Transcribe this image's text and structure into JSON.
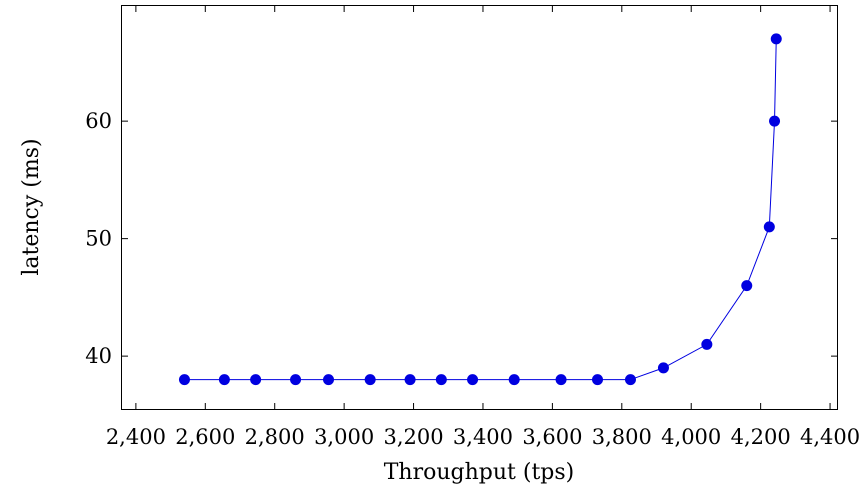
{
  "chart_data": {
    "type": "line",
    "title": "",
    "xlabel": "Throughput (tps)",
    "ylabel": "latency (ms)",
    "xlim": [
      2360,
      4420
    ],
    "ylim": [
      35.5,
      69.8
    ],
    "xticks": [
      2400,
      2600,
      2800,
      3000,
      3200,
      3400,
      3600,
      3800,
      4000,
      4200,
      4400
    ],
    "xtick_labels": [
      "2,400",
      "2,600",
      "2,800",
      "3,000",
      "3,200",
      "3,400",
      "3,600",
      "3,800",
      "4,000",
      "4,200",
      "4,400"
    ],
    "yticks": [
      40,
      50,
      60
    ],
    "ytick_labels": [
      "40",
      "50",
      "60"
    ],
    "grid": false,
    "legend": "none",
    "series": [
      {
        "color": "#0000e0",
        "marker": "circle",
        "x": [
          2540,
          2655,
          2745,
          2860,
          2955,
          3075,
          3190,
          3280,
          3370,
          3490,
          3625,
          3730,
          3825,
          3920,
          4045,
          4160,
          4225,
          4240,
          4245
        ],
        "y": [
          38,
          38,
          38,
          38,
          38,
          38,
          38,
          38,
          38,
          38,
          38,
          38,
          38,
          39,
          41,
          46,
          51,
          60,
          67
        ]
      }
    ]
  }
}
